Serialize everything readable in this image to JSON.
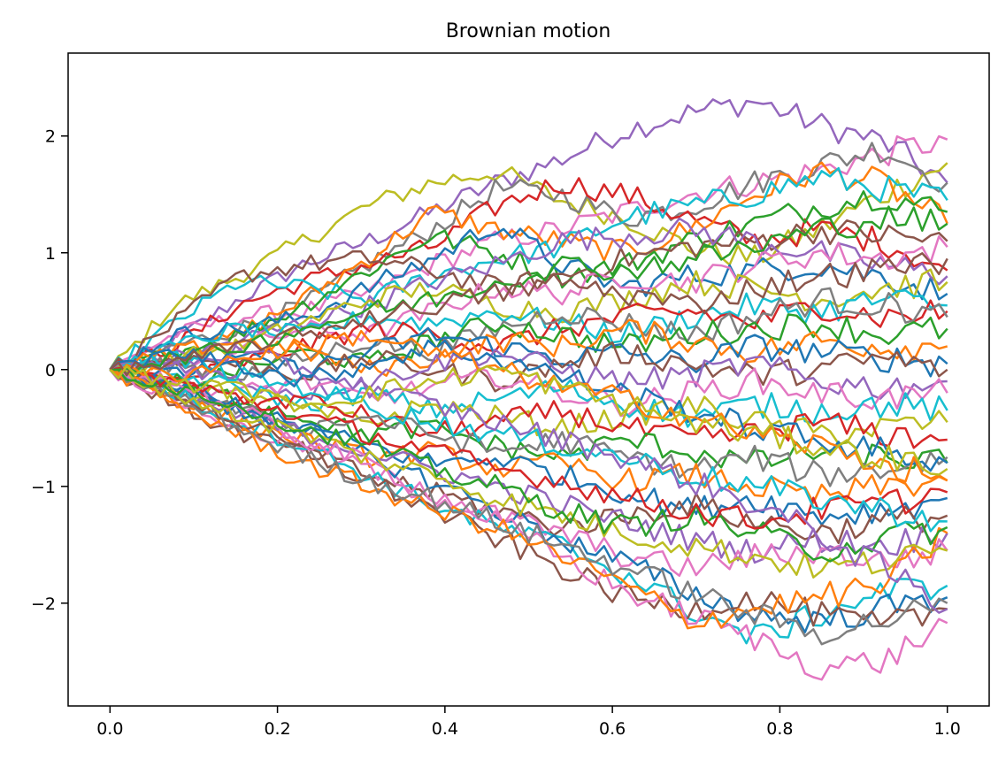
{
  "chart_data": {
    "type": "line",
    "title": "Brownian motion",
    "xlabel": "",
    "ylabel": "",
    "xlim": [
      -0.05,
      1.05
    ],
    "ylim": [
      -2.88,
      2.71
    ],
    "x_ticks": [
      0.0,
      0.2,
      0.4,
      0.6,
      0.8,
      1.0
    ],
    "x_tick_labels": [
      "0.0",
      "0.2",
      "0.4",
      "0.6",
      "0.8",
      "1.0"
    ],
    "y_ticks": [
      -2,
      -1,
      0,
      1,
      2
    ],
    "y_tick_labels": [
      "−2",
      "−1",
      "0",
      "1",
      "2"
    ],
    "grid": false,
    "legend": "none",
    "x_start": 0.0,
    "x_end": 1.0,
    "points_per_path": 101,
    "palette": [
      "#1f77b4",
      "#ff7f0e",
      "#2ca02c",
      "#d62728",
      "#9467bd",
      "#8c564b",
      "#e377c2",
      "#7f7f7f",
      "#bcbd22",
      "#17becf"
    ],
    "series": [
      {
        "color": "#9467bd",
        "values": [
          0.0,
          0.25,
          0.6,
          0.9,
          1.1,
          1.35,
          1.6,
          1.8,
          2.05,
          2.2,
          2.3,
          2.1,
          1.95,
          1.6
        ]
      },
      {
        "color": "#bcbd22",
        "values": [
          0.0,
          0.55,
          0.8,
          1.1,
          1.4,
          1.6,
          1.7,
          1.45,
          1.3,
          1.05,
          0.95,
          1.2,
          1.5,
          1.77
        ]
      },
      {
        "color": "#e377c2",
        "values": [
          0.0,
          0.3,
          0.45,
          0.5,
          0.65,
          0.9,
          1.1,
          1.2,
          1.35,
          1.5,
          1.6,
          1.7,
          1.85,
          1.97
        ]
      },
      {
        "color": "#7f7f7f",
        "values": [
          0.0,
          0.2,
          0.35,
          0.55,
          0.9,
          1.2,
          1.55,
          1.5,
          1.3,
          1.4,
          1.6,
          1.75,
          1.9,
          1.6
        ]
      },
      {
        "color": "#d62728",
        "values": [
          0.0,
          0.2,
          0.55,
          0.75,
          0.9,
          1.05,
          1.4,
          1.6,
          1.5,
          1.3,
          1.1,
          1.2,
          1.1,
          0.85
        ]
      },
      {
        "color": "#ff7f0e",
        "values": [
          0.0,
          0.1,
          0.3,
          0.6,
          0.95,
          1.35,
          1.2,
          1.1,
          1.0,
          1.2,
          1.5,
          1.7,
          1.6,
          1.25
        ]
      },
      {
        "color": "#17becf",
        "values": [
          0.0,
          0.4,
          0.75,
          0.7,
          0.6,
          0.8,
          0.95,
          1.05,
          1.3,
          1.4,
          1.5,
          1.65,
          1.55,
          1.45
        ]
      },
      {
        "color": "#2ca02c",
        "values": [
          0.0,
          0.15,
          0.3,
          0.55,
          0.85,
          1.15,
          1.0,
          0.8,
          0.9,
          1.1,
          1.25,
          1.4,
          1.5,
          1.35
        ]
      },
      {
        "color": "#1f77b4",
        "values": [
          0.0,
          0.3,
          0.35,
          0.45,
          0.7,
          0.95,
          1.25,
          0.9,
          0.7,
          0.8,
          0.85,
          0.9,
          0.8,
          0.65
        ]
      },
      {
        "color": "#8c564b",
        "values": [
          0.0,
          0.4,
          0.8,
          0.9,
          0.95,
          0.85,
          0.7,
          0.8,
          0.95,
          1.05,
          1.1,
          1.2,
          1.15,
          1.1
        ]
      },
      {
        "color": "#9467bd",
        "values": [
          0.0,
          0.1,
          0.25,
          0.4,
          0.55,
          0.75,
          0.9,
          1.1,
          1.15,
          1.2,
          1.1,
          1.0,
          0.9,
          0.8
        ]
      },
      {
        "color": "#e377c2",
        "values": [
          0.0,
          -0.1,
          0.2,
          0.35,
          0.3,
          0.5,
          0.7,
          0.65,
          0.8,
          0.75,
          0.9,
          1.0,
          0.95,
          1.05
        ]
      },
      {
        "color": "#bcbd22",
        "values": [
          0.0,
          0.1,
          0.2,
          0.4,
          0.6,
          0.7,
          0.55,
          0.5,
          0.6,
          0.75,
          0.7,
          0.6,
          0.7,
          0.75
        ]
      },
      {
        "color": "#17becf",
        "values": [
          0.0,
          0.2,
          0.35,
          0.3,
          0.45,
          0.4,
          0.5,
          0.4,
          0.3,
          0.45,
          0.55,
          0.5,
          0.6,
          0.55
        ]
      },
      {
        "color": "#d62728",
        "values": [
          0.0,
          -0.1,
          0.05,
          0.2,
          0.35,
          0.3,
          0.2,
          0.35,
          0.45,
          0.5,
          0.4,
          0.55,
          0.45,
          0.5
        ]
      },
      {
        "color": "#7f7f7f",
        "values": [
          0.0,
          0.05,
          -0.05,
          0.1,
          0.25,
          0.15,
          0.35,
          0.5,
          0.4,
          0.3,
          0.45,
          0.6,
          0.55,
          0.45
        ]
      },
      {
        "color": "#2ca02c",
        "values": [
          0.0,
          -0.15,
          0.0,
          0.15,
          0.05,
          0.25,
          0.4,
          0.3,
          0.2,
          0.3,
          0.35,
          0.4,
          0.3,
          0.35
        ]
      },
      {
        "color": "#ff7f0e",
        "values": [
          0.0,
          0.15,
          0.25,
          0.15,
          0.0,
          0.1,
          0.25,
          0.2,
          0.35,
          0.25,
          0.15,
          0.25,
          0.2,
          0.2
        ]
      },
      {
        "color": "#1f77b4",
        "values": [
          0.0,
          -0.05,
          0.1,
          0.0,
          0.15,
          0.3,
          0.2,
          0.1,
          0.15,
          0.05,
          0.2,
          0.15,
          0.1,
          0.05
        ]
      },
      {
        "color": "#8c564b",
        "values": [
          0.0,
          0.1,
          0.05,
          -0.05,
          0.1,
          0.0,
          -0.1,
          0.05,
          0.15,
          0.05,
          -0.05,
          0.0,
          0.1,
          0.0
        ]
      },
      {
        "color": "#9467bd",
        "values": [
          0.0,
          0.05,
          -0.1,
          -0.2,
          -0.1,
          0.05,
          0.15,
          0.0,
          -0.1,
          -0.05,
          0.05,
          -0.1,
          -0.15,
          -0.1
        ]
      },
      {
        "color": "#e377c2",
        "values": [
          0.0,
          -0.1,
          -0.2,
          -0.1,
          -0.25,
          -0.15,
          -0.05,
          -0.2,
          -0.3,
          -0.2,
          -0.1,
          -0.2,
          -0.25,
          -0.2
        ]
      },
      {
        "color": "#17becf",
        "values": [
          0.0,
          -0.05,
          -0.15,
          -0.3,
          -0.2,
          -0.35,
          -0.25,
          -0.15,
          -0.3,
          -0.4,
          -0.3,
          -0.35,
          -0.3,
          -0.35
        ]
      },
      {
        "color": "#bcbd22",
        "values": [
          0.0,
          -0.2,
          -0.15,
          -0.35,
          -0.45,
          -0.3,
          -0.4,
          -0.5,
          -0.4,
          -0.3,
          -0.45,
          -0.55,
          -0.5,
          -0.45
        ]
      },
      {
        "color": "#d62728",
        "values": [
          0.0,
          -0.15,
          -0.3,
          -0.25,
          -0.4,
          -0.55,
          -0.45,
          -0.35,
          -0.5,
          -0.6,
          -0.55,
          -0.45,
          -0.55,
          -0.6
        ]
      },
      {
        "color": "#2ca02c",
        "values": [
          0.0,
          -0.1,
          -0.25,
          -0.4,
          -0.55,
          -0.5,
          -0.65,
          -0.75,
          -0.6,
          -0.7,
          -0.8,
          -0.7,
          -0.75,
          -0.8
        ]
      },
      {
        "color": "#7f7f7f",
        "values": [
          0.0,
          -0.2,
          -0.35,
          -0.5,
          -0.4,
          -0.55,
          -0.7,
          -0.6,
          -0.75,
          -0.85,
          -0.75,
          -0.9,
          -0.85,
          -0.75
        ]
      },
      {
        "color": "#ff7f0e",
        "values": [
          0.0,
          -0.25,
          -0.45,
          -0.6,
          -0.75,
          -0.7,
          -0.85,
          -0.8,
          -0.95,
          -0.9,
          -1.0,
          -1.1,
          -1.0,
          -0.95
        ]
      },
      {
        "color": "#1f77b4",
        "values": [
          0.0,
          -0.15,
          -0.35,
          -0.5,
          -0.65,
          -0.8,
          -0.75,
          -0.9,
          -1.05,
          -1.2,
          -1.1,
          -1.25,
          -1.2,
          -1.1
        ]
      },
      {
        "color": "#8c564b",
        "values": [
          0.0,
          -0.3,
          -0.55,
          -0.7,
          -0.9,
          -1.05,
          -1.2,
          -1.35,
          -1.25,
          -1.15,
          -1.3,
          -1.4,
          -1.3,
          -1.25
        ]
      },
      {
        "color": "#9467bd",
        "values": [
          0.0,
          -0.2,
          -0.4,
          -0.55,
          -0.7,
          -0.85,
          -1.0,
          -1.15,
          -1.3,
          -1.45,
          -1.55,
          -1.45,
          -1.5,
          -1.4
        ]
      },
      {
        "color": "#e377c2",
        "values": [
          0.0,
          -0.25,
          -0.5,
          -0.65,
          -0.85,
          -1.1,
          -1.25,
          -1.4,
          -1.6,
          -1.7,
          -1.6,
          -1.55,
          -1.65,
          -1.55
        ]
      },
      {
        "color": "#17becf",
        "values": [
          0.0,
          -0.2,
          -0.45,
          -0.65,
          -0.9,
          -1.15,
          -1.35,
          -1.5,
          -1.75,
          -2.05,
          -2.3,
          -2.1,
          -1.9,
          -1.85
        ]
      },
      {
        "color": "#1f77b4",
        "values": [
          0.0,
          -0.15,
          -0.3,
          -0.5,
          -0.75,
          -0.95,
          -1.2,
          -1.45,
          -1.65,
          -1.9,
          -2.1,
          -2.15,
          -2.05,
          -1.95
        ]
      },
      {
        "color": "#8c564b",
        "values": [
          0.0,
          -0.2,
          -0.45,
          -0.7,
          -0.95,
          -1.2,
          -1.45,
          -1.7,
          -1.95,
          -2.05,
          -1.95,
          -2.1,
          -2.2,
          -2.05
        ]
      },
      {
        "color": "#e377c2",
        "values": [
          0.0,
          -0.1,
          -0.35,
          -0.6,
          -0.8,
          -1.05,
          -1.3,
          -1.6,
          -1.9,
          -2.1,
          -2.3,
          -2.55,
          -2.5,
          -2.17
        ]
      },
      {
        "color": "#ff7f0e",
        "values": [
          0.0,
          -0.3,
          -0.55,
          -0.8,
          -1.0,
          -1.2,
          -1.35,
          -1.6,
          -1.85,
          -2.15,
          -2.05,
          -1.95,
          -1.85,
          -1.4
        ]
      },
      {
        "color": "#7f7f7f",
        "values": [
          0.0,
          -0.25,
          -0.5,
          -0.75,
          -0.95,
          -1.1,
          -1.3,
          -1.5,
          -1.7,
          -1.9,
          -2.1,
          -2.25,
          -2.15,
          -2.0
        ]
      },
      {
        "color": "#bcbd22",
        "values": [
          0.0,
          -0.2,
          -0.4,
          -0.55,
          -0.75,
          -0.9,
          -1.1,
          -1.25,
          -1.4,
          -1.5,
          -1.6,
          -1.7,
          -1.65,
          -1.55
        ]
      },
      {
        "color": "#2ca02c",
        "values": [
          0.0,
          -0.15,
          -0.3,
          -0.5,
          -0.65,
          -0.85,
          -1.0,
          -1.2,
          -1.35,
          -1.25,
          -1.4,
          -1.55,
          -1.45,
          -1.35
        ]
      },
      {
        "color": "#d62728",
        "values": [
          0.0,
          -0.1,
          -0.25,
          -0.4,
          -0.55,
          -0.7,
          -0.85,
          -0.95,
          -1.1,
          -1.2,
          -1.3,
          -1.2,
          -1.15,
          -1.05
        ]
      },
      {
        "color": "#17becf",
        "values": [
          0.0,
          0.1,
          -0.05,
          -0.15,
          -0.3,
          -0.45,
          -0.55,
          -0.65,
          -0.75,
          -0.9,
          -1.0,
          -1.1,
          -1.2,
          -1.3
        ]
      },
      {
        "color": "#9467bd",
        "values": [
          0.0,
          0.05,
          0.15,
          0.0,
          -0.15,
          -0.3,
          -0.45,
          -0.6,
          -0.75,
          -0.95,
          -1.15,
          -1.4,
          -1.7,
          -2.05
        ]
      },
      {
        "color": "#2ca02c",
        "values": [
          0.0,
          0.1,
          0.2,
          0.35,
          0.5,
          0.6,
          0.75,
          0.9,
          0.85,
          0.95,
          1.05,
          1.2,
          1.3,
          1.25
        ]
      },
      {
        "color": "#1f77b4",
        "values": [
          0.0,
          0.15,
          0.05,
          -0.1,
          0.05,
          0.2,
          0.1,
          -0.05,
          -0.2,
          -0.35,
          -0.5,
          -0.6,
          -0.7,
          -0.8
        ]
      },
      {
        "color": "#ff7f0e",
        "values": [
          0.0,
          -0.05,
          0.1,
          0.2,
          0.3,
          0.15,
          0.0,
          -0.15,
          -0.25,
          -0.4,
          -0.55,
          -0.65,
          -0.8,
          -0.95
        ]
      },
      {
        "color": "#8c564b",
        "values": [
          0.0,
          0.05,
          0.2,
          0.3,
          0.45,
          0.55,
          0.65,
          0.75,
          0.65,
          0.55,
          0.7,
          0.8,
          0.85,
          0.95
        ]
      },
      {
        "color": "#bcbd22",
        "values": [
          0.0,
          -0.1,
          -0.2,
          -0.3,
          -0.2,
          -0.1,
          0.0,
          -0.15,
          -0.3,
          -0.45,
          -0.55,
          -0.65,
          -0.75,
          -0.85
        ]
      }
    ]
  }
}
